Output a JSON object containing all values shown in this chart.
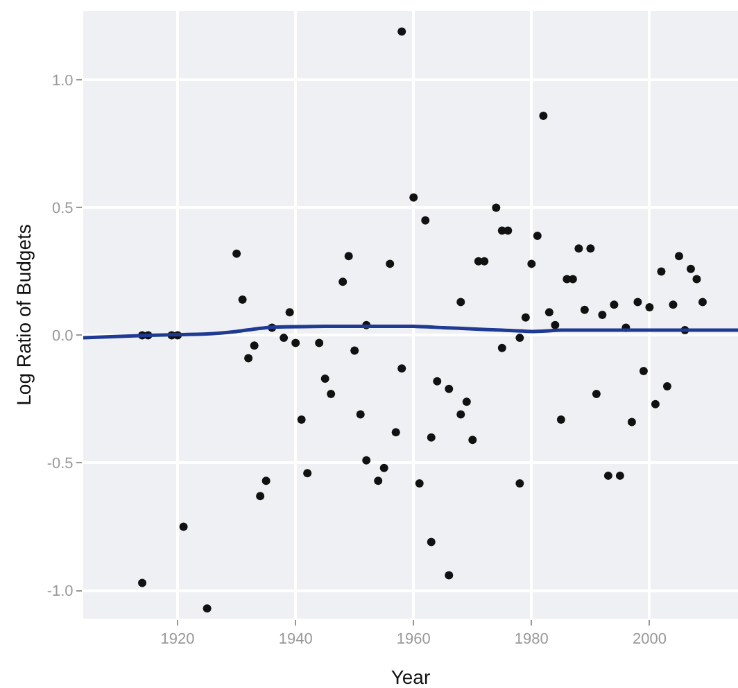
{
  "chart_data": {
    "type": "scatter",
    "xlabel": "Year",
    "ylabel": "Log Ratio of Budgets",
    "xlim": [
      1904,
      2015
    ],
    "ylim": [
      -1.11,
      1.27
    ],
    "xticks": [
      1920,
      1940,
      1960,
      1980,
      2000
    ],
    "yticks": [
      {
        "value": -1,
        "label": "-1.0"
      },
      {
        "value": -0.5,
        "label": "-0.5"
      },
      {
        "value": 0,
        "label": "0.0"
      },
      {
        "value": 0.5,
        "label": "0.5"
      },
      {
        "value": 1,
        "label": "1.0"
      }
    ],
    "grid": true,
    "marker": "circle",
    "series": [
      {
        "type": "scatter",
        "color": "#111111",
        "x": [
          1914,
          1915,
          1919,
          1920,
          1930,
          1931,
          1939,
          1936,
          1948,
          1949,
          1956,
          1952,
          1958,
          1914,
          1921,
          1925,
          1932,
          1933,
          1934,
          1935,
          1938,
          1940,
          1941,
          1942,
          1944,
          1945,
          1946,
          1950,
          1951,
          1952,
          1954,
          1955,
          1957,
          1958,
          1960,
          1962,
          1968,
          1974,
          1975,
          1976,
          1971,
          1972,
          1981,
          1980,
          1982,
          1979,
          1983,
          1984,
          1986,
          1987,
          1988,
          1990,
          1989,
          1992,
          1994,
          1996,
          1998,
          2000,
          2002,
          2004,
          2005,
          2007,
          2008,
          2009,
          2006,
          1975,
          1978,
          1961,
          1963,
          1963,
          1964,
          1966,
          1966,
          1968,
          1969,
          1970,
          1978,
          1985,
          1991,
          1993,
          1995,
          1997,
          1999,
          2001,
          2003
        ],
        "values": [
          0,
          0,
          0,
          0,
          0.32,
          0.14,
          0.09,
          0.03,
          0.21,
          0.31,
          0.28,
          0.04,
          1.19,
          -0.97,
          -0.75,
          -1.07,
          -0.09,
          -0.04,
          -0.63,
          -0.57,
          -0.01,
          -0.03,
          -0.33,
          -0.54,
          -0.03,
          -0.17,
          -0.23,
          -0.06,
          -0.31,
          -0.49,
          -0.57,
          -0.52,
          -0.38,
          -0.13,
          0.54,
          0.45,
          0.13,
          0.5,
          0.41,
          0.41,
          0.29,
          0.29,
          0.39,
          0.28,
          0.86,
          0.07,
          0.09,
          0.04,
          0.22,
          0.22,
          0.34,
          0.34,
          0.1,
          0.08,
          0.12,
          0.03,
          0.13,
          0.11,
          0.25,
          0.12,
          0.31,
          0.26,
          0.22,
          0.13,
          0.02,
          -0.05,
          -0.01,
          -0.58,
          -0.4,
          -0.81,
          -0.18,
          -0.21,
          -0.94,
          -0.31,
          -0.26,
          -0.41,
          -0.58,
          -0.33,
          -0.23,
          -0.55,
          -0.55,
          -0.34,
          -0.14,
          -0.27,
          -0.2
        ]
      },
      {
        "type": "line",
        "color": "#1f3a93",
        "marker": "none",
        "line_style": "solid",
        "x": [
          1904,
          1915,
          1925,
          1930,
          1935,
          1945,
          1955,
          1960,
          1965,
          1970,
          1975,
          1980,
          1985,
          1990,
          2000,
          2010,
          2015
        ],
        "values": [
          -0.01,
          0,
          0.005,
          0.015,
          0.03,
          0.035,
          0.035,
          0.035,
          0.03,
          0.025,
          0.02,
          0.015,
          0.02,
          0.02,
          0.02,
          0.02,
          0.02
        ]
      }
    ]
  }
}
